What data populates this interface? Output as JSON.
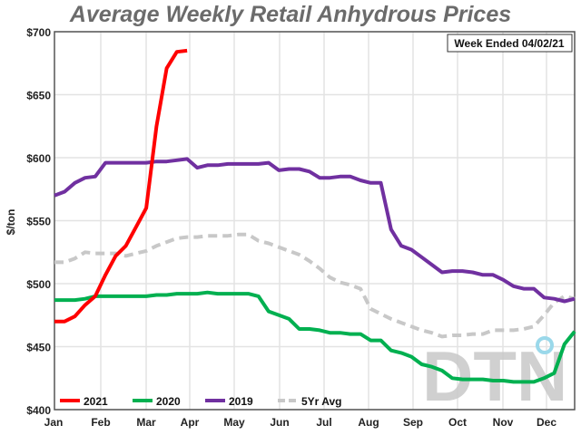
{
  "chart_data": {
    "type": "line",
    "title": "Average Weekly Retail Anhydrous Prices",
    "annotation": "Week Ended 04/02/21",
    "ylabel": "$/ton",
    "xlabel": "",
    "ylim": [
      400,
      700
    ],
    "yticks": [
      "$400",
      "$450",
      "$500",
      "$550",
      "$600",
      "$650",
      "$700"
    ],
    "xticks": [
      "Jan",
      "Feb",
      "Mar",
      "Apr",
      "May",
      "Jun",
      "Jul",
      "Aug",
      "Sep",
      "Oct",
      "Nov",
      "Dec"
    ],
    "grid": true,
    "legend_position": "bottom",
    "watermark": "DTN",
    "series": [
      {
        "name": "2021",
        "color": "#ff0000",
        "dashed": false,
        "values": [
          470,
          470,
          474,
          483,
          490,
          507,
          522,
          530,
          545,
          560,
          625,
          671,
          684,
          685
        ]
      },
      {
        "name": "2020",
        "color": "#00b050",
        "dashed": false,
        "values": [
          487,
          487,
          487,
          488,
          490,
          490,
          490,
          490,
          490,
          490,
          491,
          491,
          492,
          492,
          492,
          493,
          492,
          492,
          492,
          492,
          490,
          478,
          475,
          472,
          464,
          464,
          463,
          461,
          461,
          460,
          460,
          455,
          455,
          447,
          445,
          442,
          436,
          434,
          431,
          425,
          424,
          424,
          424,
          423,
          423,
          422,
          422,
          422,
          425,
          429,
          452,
          462
        ]
      },
      {
        "name": "2019",
        "color": "#7030a0",
        "dashed": false,
        "values": [
          570,
          573,
          580,
          584,
          585,
          596,
          596,
          596,
          596,
          596,
          597,
          597,
          598,
          599,
          592,
          594,
          594,
          595,
          595,
          595,
          595,
          596,
          590,
          591,
          591,
          589,
          584,
          584,
          585,
          585,
          582,
          580,
          580,
          543,
          530,
          527,
          521,
          515,
          509,
          510,
          510,
          509,
          507,
          507,
          503,
          498,
          496,
          496,
          489,
          488,
          486,
          488
        ]
      },
      {
        "name": "5Yr Avg",
        "color": "#c8c8c8",
        "dashed": true,
        "values": [
          517,
          517,
          520,
          525,
          524,
          524,
          524,
          522,
          524,
          526,
          530,
          533,
          536,
          537,
          537,
          538,
          538,
          538,
          539,
          539,
          534,
          532,
          529,
          526,
          523,
          518,
          512,
          505,
          501,
          499,
          496,
          480,
          476,
          472,
          469,
          466,
          463,
          461,
          458,
          459,
          459,
          460,
          460,
          463,
          463,
          463,
          464,
          466,
          475,
          485,
          490,
          488
        ]
      }
    ]
  }
}
